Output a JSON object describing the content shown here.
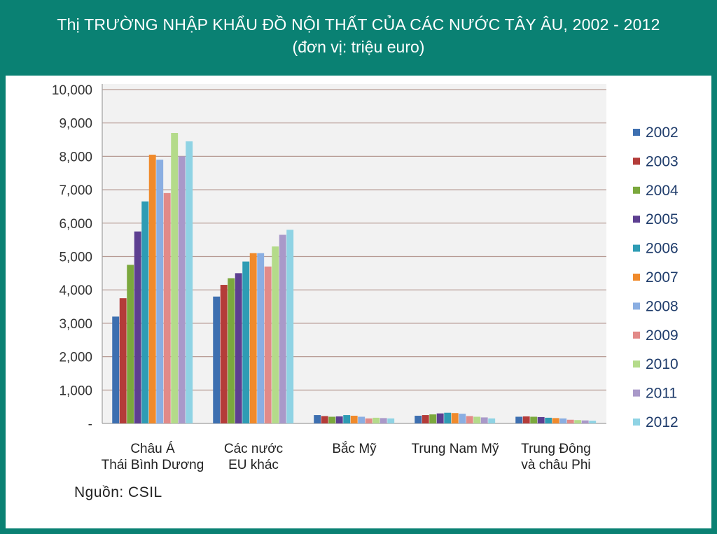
{
  "header": {
    "title": "Thị TRƯỜNG NHẬP KHẨU ĐỒ NỘI THẤT CỦA CÁC NƯỚC TÂY ÂU, 2002 - 2012",
    "subtitle": "(đơn vị: triệu euro)"
  },
  "source": "Nguồn: CSIL",
  "colors": {
    "frame": "#0a8173",
    "plot_bg": "#f2f2f2",
    "grid": "#b79b94",
    "series": [
      "#3d6fb0",
      "#b43c39",
      "#7ba83d",
      "#5d3f91",
      "#2e9cb4",
      "#f08a2b",
      "#8aaee2",
      "#e28a88",
      "#b4db8a",
      "#a999c9",
      "#8fd3e4"
    ]
  },
  "chart_data": {
    "type": "bar",
    "title": "Thị TRƯỜNG NHẬP KHẨU ĐỒ NỘI THẤT CỦA CÁC NƯỚC TÂY ÂU, 2002 - 2012",
    "subtitle": "(đơn vị: triệu euro)",
    "xlabel": "",
    "ylabel": "",
    "ylim": [
      0,
      10000
    ],
    "yticks": [
      "-",
      "1,000",
      "2,000",
      "3,000",
      "4,000",
      "5,000",
      "6,000",
      "7,000",
      "8,000",
      "9,000",
      "10,000"
    ],
    "grid": true,
    "legend": "right",
    "categories": [
      [
        "Châu Á",
        "Thái Bình Dương"
      ],
      [
        "Các nước",
        "EU khác"
      ],
      [
        "Bắc Mỹ"
      ],
      [
        "Trung Nam Mỹ"
      ],
      [
        "Trung Đông",
        "và châu Phi"
      ]
    ],
    "series": [
      {
        "name": "2002",
        "values": [
          3200,
          3800,
          250,
          230,
          200
        ]
      },
      {
        "name": "2003",
        "values": [
          3750,
          4150,
          220,
          250,
          210
        ]
      },
      {
        "name": "2004",
        "values": [
          4750,
          4350,
          200,
          270,
          200
        ]
      },
      {
        "name": "2005",
        "values": [
          5750,
          4500,
          210,
          300,
          190
        ]
      },
      {
        "name": "2006",
        "values": [
          6650,
          4850,
          250,
          320,
          170
        ]
      },
      {
        "name": "2007",
        "values": [
          8050,
          5100,
          230,
          310,
          160
        ]
      },
      {
        "name": "2008",
        "values": [
          7900,
          5100,
          200,
          290,
          150
        ]
      },
      {
        "name": "2009",
        "values": [
          6900,
          4700,
          150,
          220,
          110
        ]
      },
      {
        "name": "2010",
        "values": [
          8700,
          5300,
          170,
          200,
          100
        ]
      },
      {
        "name": "2011",
        "values": [
          8000,
          5650,
          160,
          180,
          90
        ]
      },
      {
        "name": "2012",
        "values": [
          8450,
          5800,
          150,
          150,
          80
        ]
      }
    ]
  }
}
